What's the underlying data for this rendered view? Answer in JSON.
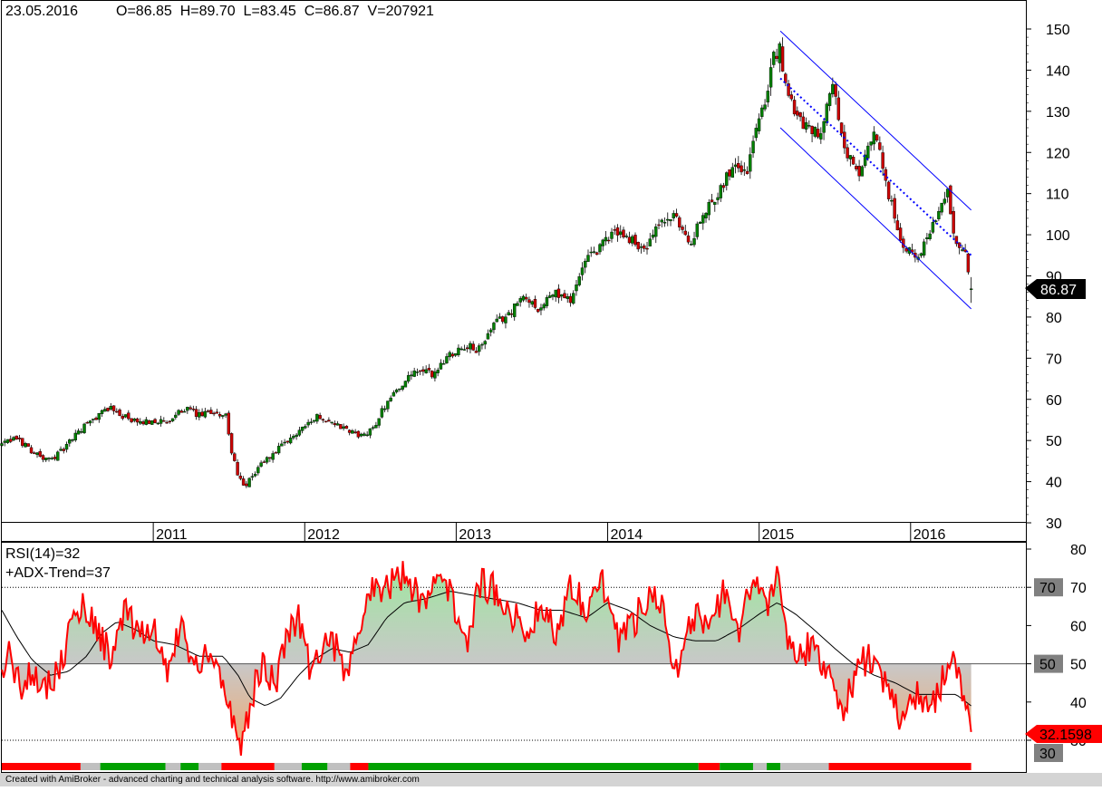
{
  "header": {
    "date": "23.05.2016",
    "ohlcv": "O=86.85  H=89.70  L=83.45  C=86.87  V=207921"
  },
  "indicator": {
    "rsi_label": "RSI(14)=32",
    "adx_label": "+ADX-Trend=37"
  },
  "price_marker": "86.87",
  "rsi_marker": "32.1598",
  "footer": "Created with AmiBroker - advanced charting and technical analysis software. http://www.amibroker.com",
  "colors": {
    "up_candle": "#008000",
    "down_candle": "#cc0000",
    "channel": "#0000ff",
    "rsi_line": "#ff0000",
    "rsi_ma": "#000000",
    "fill_above": "#9ee89e",
    "fill_below": "#f4a76a",
    "trend_up": "#00a000",
    "trend_down": "#ff0000",
    "trend_neutral": "#c0c0c0"
  },
  "chart_data": [
    {
      "type": "candlestick",
      "title": "",
      "xlabel": "",
      "ylabel": "",
      "x_tick_labels": [
        "2011",
        "2012",
        "2013",
        "2014",
        "2015",
        "2016"
      ],
      "y_ticks": [
        30,
        40,
        50,
        60,
        70,
        80,
        90,
        100,
        110,
        120,
        130,
        140,
        150
      ],
      "ylim": [
        28,
        155
      ],
      "grid": false,
      "x_range": [
        2010.0,
        2016.45
      ],
      "close_path": [
        [
          2010.0,
          49
        ],
        [
          2010.1,
          50.5
        ],
        [
          2010.2,
          47.5
        ],
        [
          2010.3,
          45
        ],
        [
          2010.4,
          47.5
        ],
        [
          2010.5,
          52
        ],
        [
          2010.6,
          55
        ],
        [
          2010.7,
          58
        ],
        [
          2010.8,
          56
        ],
        [
          2010.9,
          54
        ],
        [
          2011.0,
          55
        ],
        [
          2011.1,
          54
        ],
        [
          2011.2,
          58
        ],
        [
          2011.3,
          56
        ],
        [
          2011.4,
          57
        ],
        [
          2011.48,
          56
        ],
        [
          2011.52,
          46
        ],
        [
          2011.6,
          38
        ],
        [
          2011.7,
          44
        ],
        [
          2011.8,
          47
        ],
        [
          2011.9,
          50
        ],
        [
          2012.0,
          54
        ],
        [
          2012.1,
          56
        ],
        [
          2012.2,
          54
        ],
        [
          2012.3,
          52
        ],
        [
          2012.4,
          51
        ],
        [
          2012.45,
          53
        ],
        [
          2012.55,
          60
        ],
        [
          2012.65,
          64
        ],
        [
          2012.75,
          67
        ],
        [
          2012.85,
          66
        ],
        [
          2012.95,
          71
        ],
        [
          2013.05,
          73
        ],
        [
          2013.15,
          72
        ],
        [
          2013.25,
          78
        ],
        [
          2013.35,
          81
        ],
        [
          2013.45,
          85
        ],
        [
          2013.55,
          82
        ],
        [
          2013.65,
          86
        ],
        [
          2013.75,
          84
        ],
        [
          2013.85,
          93
        ],
        [
          2013.95,
          97
        ],
        [
          2014.05,
          101
        ],
        [
          2014.15,
          99
        ],
        [
          2014.25,
          96
        ],
        [
          2014.35,
          103
        ],
        [
          2014.45,
          104
        ],
        [
          2014.55,
          98
        ],
        [
          2014.65,
          106
        ],
        [
          2014.75,
          112
        ],
        [
          2014.85,
          118
        ],
        [
          2014.92,
          115
        ],
        [
          2015.0,
          130
        ],
        [
          2015.05,
          134
        ],
        [
          2015.1,
          143
        ],
        [
          2015.14,
          145
        ],
        [
          2015.2,
          132
        ],
        [
          2015.3,
          127
        ],
        [
          2015.4,
          125
        ],
        [
          2015.48,
          137
        ],
        [
          2015.56,
          121
        ],
        [
          2015.66,
          114
        ],
        [
          2015.76,
          125
        ],
        [
          2015.84,
          112
        ],
        [
          2015.94,
          98
        ],
        [
          2016.04,
          94
        ],
        [
          2016.14,
          102
        ],
        [
          2016.24,
          111
        ],
        [
          2016.3,
          98
        ],
        [
          2016.36,
          96
        ],
        [
          2016.4,
          86.87
        ]
      ],
      "annotations": [
        {
          "type": "channel_upper",
          "from": [
            2015.14,
            149.5
          ],
          "to": [
            2016.4,
            106
          ]
        },
        {
          "type": "channel_lower",
          "from": [
            2015.14,
            126
          ],
          "to": [
            2016.4,
            82
          ]
        },
        {
          "type": "regression_midline",
          "from": [
            2015.14,
            138
          ],
          "to": [
            2016.4,
            95
          ]
        }
      ]
    },
    {
      "type": "line",
      "series": [
        {
          "name": "RSI(14)",
          "values_path": [
            [
              2010.0,
              46
            ],
            [
              2010.05,
              54
            ],
            [
              2010.12,
              43
            ],
            [
              2010.2,
              49
            ],
            [
              2010.3,
              44
            ],
            [
              2010.38,
              49
            ],
            [
              2010.46,
              60
            ],
            [
              2010.54,
              66
            ],
            [
              2010.64,
              58
            ],
            [
              2010.72,
              52
            ],
            [
              2010.82,
              64
            ],
            [
              2010.9,
              56
            ],
            [
              2011.0,
              60
            ],
            [
              2011.08,
              48
            ],
            [
              2011.18,
              60
            ],
            [
              2011.28,
              48
            ],
            [
              2011.36,
              55
            ],
            [
              2011.44,
              47
            ],
            [
              2011.52,
              36
            ],
            [
              2011.58,
              25
            ],
            [
              2011.64,
              40
            ],
            [
              2011.72,
              50
            ],
            [
              2011.8,
              44
            ],
            [
              2011.88,
              58
            ],
            [
              2011.96,
              63
            ],
            [
              2012.04,
              48
            ],
            [
              2012.12,
              56
            ],
            [
              2012.2,
              55
            ],
            [
              2012.28,
              45
            ],
            [
              2012.36,
              60
            ],
            [
              2012.46,
              71
            ],
            [
              2012.56,
              70
            ],
            [
              2012.66,
              74
            ],
            [
              2012.76,
              67
            ],
            [
              2012.86,
              71
            ],
            [
              2012.96,
              69
            ],
            [
              2013.06,
              55
            ],
            [
              2013.16,
              71
            ],
            [
              2013.26,
              69
            ],
            [
              2013.36,
              64
            ],
            [
              2013.46,
              57
            ],
            [
              2013.56,
              66
            ],
            [
              2013.66,
              58
            ],
            [
              2013.76,
              71
            ],
            [
              2013.86,
              65
            ],
            [
              2013.96,
              72
            ],
            [
              2014.06,
              57
            ],
            [
              2014.16,
              60
            ],
            [
              2014.26,
              68
            ],
            [
              2014.36,
              67
            ],
            [
              2014.46,
              46
            ],
            [
              2014.56,
              62
            ],
            [
              2014.66,
              60
            ],
            [
              2014.76,
              68
            ],
            [
              2014.86,
              57
            ],
            [
              2014.96,
              72
            ],
            [
              2015.06,
              66
            ],
            [
              2015.12,
              76
            ],
            [
              2015.18,
              56
            ],
            [
              2015.26,
              52
            ],
            [
              2015.36,
              55
            ],
            [
              2015.46,
              48
            ],
            [
              2015.56,
              38
            ],
            [
              2015.66,
              50
            ],
            [
              2015.76,
              52
            ],
            [
              2015.84,
              44
            ],
            [
              2015.94,
              34
            ],
            [
              2016.04,
              43
            ],
            [
              2016.14,
              38
            ],
            [
              2016.22,
              47
            ],
            [
              2016.28,
              54
            ],
            [
              2016.34,
              40
            ],
            [
              2016.4,
              32.1598
            ]
          ]
        },
        {
          "name": "",
          "values_path": [
            [
              2010.0,
              64
            ],
            [
              2010.1,
              57
            ],
            [
              2010.2,
              51
            ],
            [
              2010.32,
              47
            ],
            [
              2010.44,
              48
            ],
            [
              2010.56,
              52
            ],
            [
              2010.66,
              58
            ],
            [
              2010.76,
              61
            ],
            [
              2010.88,
              59
            ],
            [
              2011.0,
              56
            ],
            [
              2011.14,
              55
            ],
            [
              2011.3,
              52
            ],
            [
              2011.46,
              52
            ],
            [
              2011.56,
              47
            ],
            [
              2011.64,
              41
            ],
            [
              2011.74,
              39
            ],
            [
              2011.84,
              41
            ],
            [
              2011.96,
              47
            ],
            [
              2012.06,
              51
            ],
            [
              2012.18,
              54
            ],
            [
              2012.3,
              53
            ],
            [
              2012.42,
              55
            ],
            [
              2012.54,
              62
            ],
            [
              2012.66,
              66
            ],
            [
              2012.8,
              67
            ],
            [
              2012.96,
              69
            ],
            [
              2013.1,
              68
            ],
            [
              2013.24,
              67
            ],
            [
              2013.4,
              66
            ],
            [
              2013.56,
              64
            ],
            [
              2013.7,
              64
            ],
            [
              2013.86,
              62
            ],
            [
              2014.0,
              66
            ],
            [
              2014.14,
              64
            ],
            [
              2014.28,
              60
            ],
            [
              2014.44,
              57
            ],
            [
              2014.58,
              56
            ],
            [
              2014.72,
              56
            ],
            [
              2014.86,
              59
            ],
            [
              2015.0,
              63
            ],
            [
              2015.12,
              66
            ],
            [
              2015.24,
              63
            ],
            [
              2015.36,
              59
            ],
            [
              2015.5,
              54
            ],
            [
              2015.62,
              50
            ],
            [
              2015.76,
              47
            ],
            [
              2015.9,
              45
            ],
            [
              2016.04,
              42
            ],
            [
              2016.18,
              42
            ],
            [
              2016.3,
              42
            ],
            [
              2016.4,
              39
            ]
          ]
        }
      ],
      "y_ticks": [
        30,
        40,
        50,
        60,
        70,
        80
      ],
      "ylim": [
        27,
        81
      ],
      "reference_lines": [
        30,
        50,
        70
      ],
      "marker_labels": [
        "70",
        "50",
        "30"
      ],
      "trend_bar": [
        {
          "from": 2010.0,
          "to": 2010.52,
          "state": "down"
        },
        {
          "from": 2010.52,
          "to": 2010.65,
          "state": "neutral"
        },
        {
          "from": 2010.65,
          "to": 2011.08,
          "state": "up"
        },
        {
          "from": 2011.08,
          "to": 2011.18,
          "state": "neutral"
        },
        {
          "from": 2011.18,
          "to": 2011.3,
          "state": "up"
        },
        {
          "from": 2011.3,
          "to": 2011.45,
          "state": "neutral"
        },
        {
          "from": 2011.45,
          "to": 2011.8,
          "state": "down"
        },
        {
          "from": 2011.8,
          "to": 2011.98,
          "state": "neutral"
        },
        {
          "from": 2011.98,
          "to": 2012.15,
          "state": "up"
        },
        {
          "from": 2012.15,
          "to": 2012.3,
          "state": "neutral"
        },
        {
          "from": 2012.3,
          "to": 2012.42,
          "state": "down"
        },
        {
          "from": 2012.42,
          "to": 2014.6,
          "state": "up"
        },
        {
          "from": 2014.6,
          "to": 2014.74,
          "state": "down"
        },
        {
          "from": 2014.74,
          "to": 2014.96,
          "state": "up"
        },
        {
          "from": 2014.96,
          "to": 2015.05,
          "state": "neutral"
        },
        {
          "from": 2015.05,
          "to": 2015.14,
          "state": "up"
        },
        {
          "from": 2015.14,
          "to": 2015.46,
          "state": "neutral"
        },
        {
          "from": 2015.46,
          "to": 2016.4,
          "state": "down"
        }
      ]
    }
  ]
}
